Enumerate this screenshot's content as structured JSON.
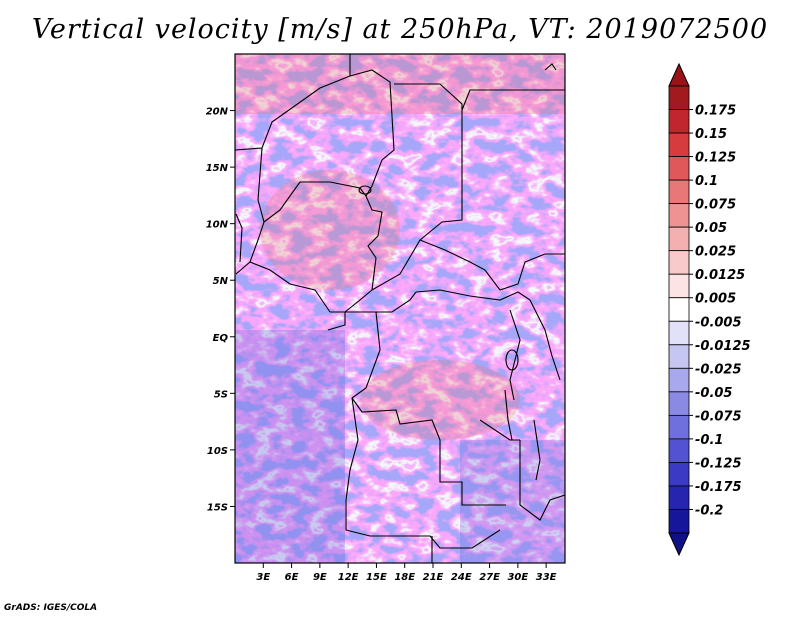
{
  "title": "Vertical velocity [m/s] at 250hPa, VT: 2019072500",
  "footer": "GrADS: IGES/COLA",
  "map": {
    "lat_labels": [
      "20N",
      "15N",
      "10N",
      "5N",
      "EQ",
      "5S",
      "10S",
      "15S"
    ],
    "lat_values": [
      20,
      15,
      10,
      5,
      0,
      -5,
      -10,
      -15
    ],
    "lon_labels": [
      "3E",
      "6E",
      "9E",
      "12E",
      "15E",
      "18E",
      "21E",
      "24E",
      "27E",
      "30E",
      "33E"
    ],
    "lon_values": [
      3,
      6,
      9,
      12,
      15,
      18,
      21,
      24,
      27,
      30,
      33
    ],
    "lon_range": [
      0,
      35
    ],
    "lat_range": [
      -20,
      25
    ]
  },
  "colorbar": {
    "labels": [
      "0.175",
      "0.15",
      "0.125",
      "0.1",
      "0.075",
      "0.05",
      "0.025",
      "0.0125",
      "0.005",
      "-0.005",
      "-0.0125",
      "-0.025",
      "-0.05",
      "-0.075",
      "-0.1",
      "-0.125",
      "-0.175",
      "-0.2"
    ],
    "colors": [
      "#a11a1e",
      "#c0272d",
      "#d63b3e",
      "#e0595a",
      "#e87777",
      "#ee9292",
      "#f4b0b0",
      "#f8caca",
      "#fce4e4",
      "#ffffff",
      "#e1e1f8",
      "#c6c6f2",
      "#a8a8ec",
      "#8a8ae4",
      "#6f6fdd",
      "#5252d2",
      "#3a3ac4",
      "#2525b0",
      "#16169a"
    ],
    "top_color": "#9a1216",
    "bottom_color": "#101088"
  }
}
